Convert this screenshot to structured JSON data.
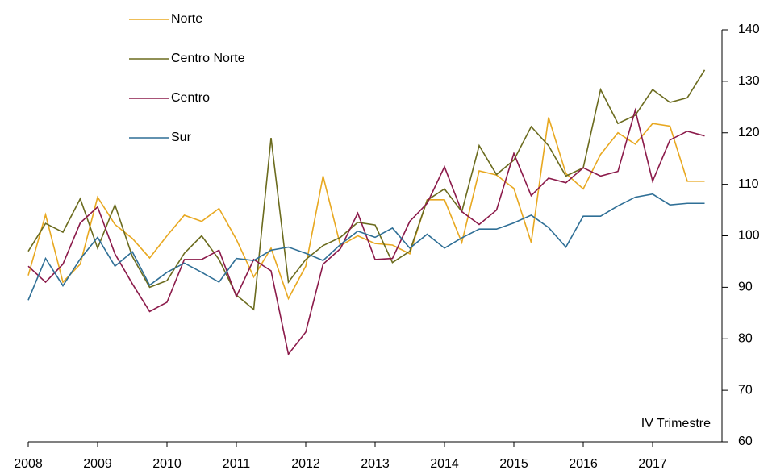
{
  "chart_data": {
    "type": "line",
    "categories": [
      "2008",
      null,
      null,
      null,
      "2009",
      null,
      null,
      null,
      "2010",
      null,
      null,
      null,
      "2011",
      null,
      null,
      null,
      "2012",
      null,
      null,
      null,
      "2013",
      null,
      null,
      null,
      "2014",
      null,
      null,
      null,
      "2015",
      null,
      null,
      null,
      "2016",
      null,
      null,
      null,
      "2017",
      null,
      null,
      null
    ],
    "series": [
      {
        "name": "Norte",
        "color": "#e8a820",
        "values": [
          92.3,
          104.1,
          91,
          94.5,
          107.5,
          102.2,
          99.5,
          95.7,
          100,
          104,
          102.8,
          105.3,
          99.3,
          92,
          97.6,
          87.8,
          94.1,
          111.6,
          98.1,
          100,
          98.5,
          98.2,
          96.5,
          107,
          107,
          98.7,
          112.6,
          111.8,
          109.2,
          98.7,
          123,
          112.1,
          109.1,
          115.8,
          120,
          117.8,
          121.8,
          121.3,
          110.6,
          110.6
        ]
      },
      {
        "name": "Centro Norte",
        "color": "#6b6b1e",
        "values": [
          97,
          102.4,
          100.7,
          107.2,
          97.6,
          106,
          96,
          90,
          91.3,
          96.6,
          100,
          95.4,
          88.5,
          85.7,
          119,
          91,
          95.4,
          98.1,
          99.7,
          102.6,
          102.1,
          94.8,
          97,
          106.9,
          109.1,
          104.7,
          117.5,
          111.9,
          114.7,
          121.2,
          117.5,
          111.6,
          113.2,
          128.4,
          121.8,
          123.4,
          128.4,
          125.9,
          126.8,
          132.2
        ]
      },
      {
        "name": "Centro",
        "color": "#8b1a4a",
        "values": [
          94.1,
          91,
          94.5,
          102.5,
          105.6,
          96.5,
          90.7,
          85.3,
          87.1,
          95.4,
          95.4,
          97.2,
          88.2,
          95.4,
          93.2,
          77,
          81.3,
          94.5,
          97.5,
          104.4,
          95.4,
          95.6,
          102.8,
          106.3,
          113.4,
          104.7,
          102.2,
          105,
          116,
          107.8,
          111.2,
          110.3,
          113.2,
          111.6,
          112.5,
          124.4,
          110.6,
          118.6,
          120.3,
          119.4
        ]
      },
      {
        "name": "Sur",
        "color": "#2f6f96",
        "values": [
          87.5,
          95.6,
          90.3,
          95.5,
          99.7,
          94.1,
          96.9,
          90.4,
          92.9,
          94.7,
          92.9,
          91,
          95.6,
          95.2,
          97.2,
          97.8,
          96.6,
          95.2,
          98.3,
          100.9,
          99.7,
          101.5,
          97.6,
          100.3,
          97.6,
          99.6,
          101.3,
          101.3,
          102.5,
          104,
          101.6,
          97.8,
          103.8,
          103.8,
          105.8,
          107.5,
          108.1,
          106,
          106.3,
          106.3
        ]
      }
    ],
    "annotation": "IV Trimestre",
    "ylim": [
      60,
      140
    ],
    "yticks": [
      60,
      70,
      80,
      90,
      100,
      110,
      120,
      130,
      140
    ],
    "y_axis_side": "right",
    "legend": "upper left"
  }
}
